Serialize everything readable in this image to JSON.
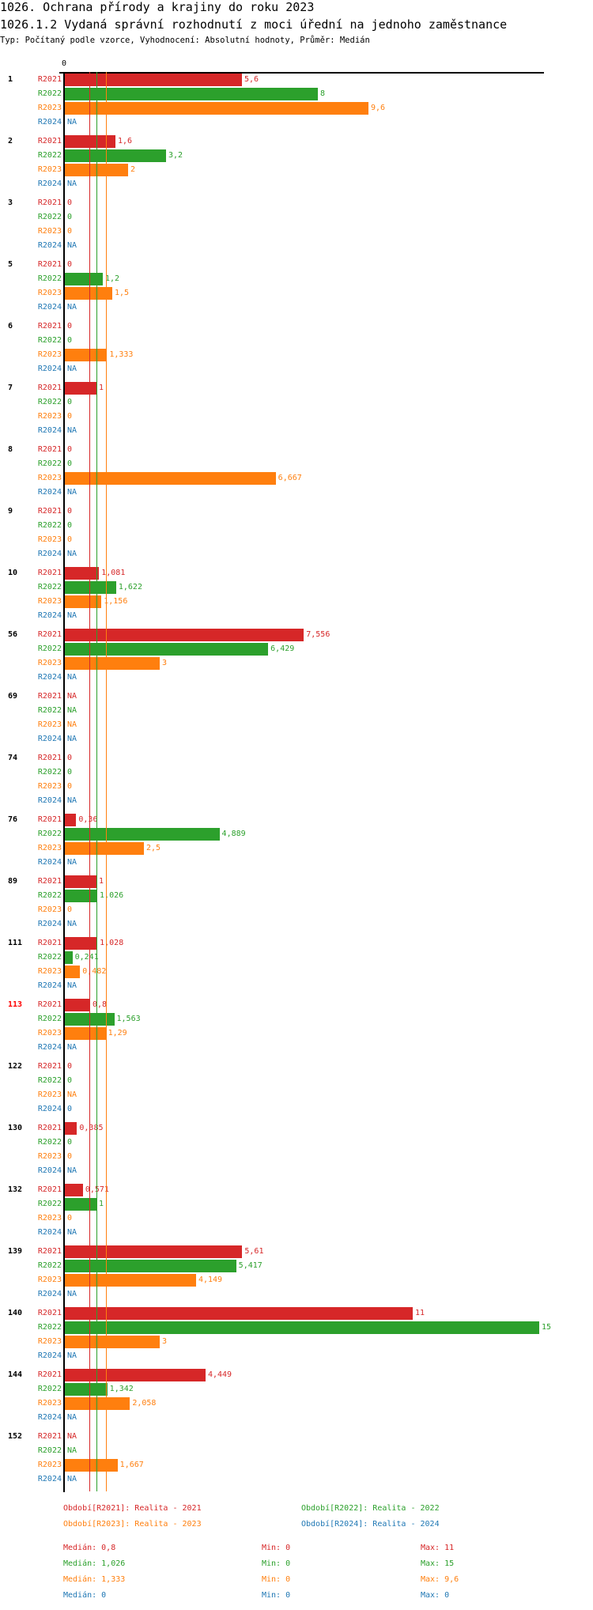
{
  "header": {
    "title": "1026. Ochrana přírody a krajiny do roku 2023",
    "subtitle": "1026.1.2 Vydaná správní rozhodnutí z moci úřední na jednoho zaměstnance",
    "type_line": "Typ: Počítaný podle vzorce, Vyhodnocení: Absolutní hodnoty, Průměr: Medián"
  },
  "chart_data": {
    "type": "bar",
    "orientation": "horizontal",
    "axis_zero_label": "0",
    "xlim": [
      0,
      15
    ],
    "series": [
      {
        "name": "R2021",
        "color": "#d62728"
      },
      {
        "name": "R2022",
        "color": "#2ca02c"
      },
      {
        "name": "R2023",
        "color": "#ff7f0e"
      },
      {
        "name": "R2024",
        "color": "#1f77b4"
      }
    ],
    "groups": [
      {
        "label": "1",
        "values": [
          "5,6",
          "8",
          "9,6",
          "NA"
        ]
      },
      {
        "label": "2",
        "values": [
          "1,6",
          "3,2",
          "2",
          "NA"
        ]
      },
      {
        "label": "3",
        "values": [
          "0",
          "0",
          "0",
          "NA"
        ]
      },
      {
        "label": "5",
        "values": [
          "0",
          "1,2",
          "1,5",
          "NA"
        ]
      },
      {
        "label": "6",
        "values": [
          "0",
          "0",
          "1,333",
          "NA"
        ]
      },
      {
        "label": "7",
        "values": [
          "1",
          "0",
          "0",
          "NA"
        ]
      },
      {
        "label": "8",
        "values": [
          "0",
          "0",
          "6,667",
          "NA"
        ]
      },
      {
        "label": "9",
        "values": [
          "0",
          "0",
          "0",
          "NA"
        ]
      },
      {
        "label": "10",
        "values": [
          "1,081",
          "1,622",
          "1,156",
          "NA"
        ]
      },
      {
        "label": "56",
        "values": [
          "7,556",
          "6,429",
          "3",
          "NA"
        ]
      },
      {
        "label": "69",
        "values": [
          "NA",
          "NA",
          "NA",
          "NA"
        ]
      },
      {
        "label": "74",
        "values": [
          "0",
          "0",
          "0",
          "NA"
        ]
      },
      {
        "label": "76",
        "values": [
          "0,36",
          "4,889",
          "2,5",
          "NA"
        ]
      },
      {
        "label": "89",
        "values": [
          "1",
          "1,026",
          "0",
          "NA"
        ]
      },
      {
        "label": "111",
        "values": [
          "1,028",
          "0,241",
          "0,482",
          "NA"
        ]
      },
      {
        "label": "113",
        "highlight": "#ff0000",
        "values": [
          "0,8",
          "1,563",
          "1,29",
          "NA"
        ]
      },
      {
        "label": "122",
        "values": [
          "0",
          "0",
          "NA",
          "0"
        ]
      },
      {
        "label": "130",
        "values": [
          "0,385",
          "0",
          "0",
          "NA"
        ]
      },
      {
        "label": "132",
        "values": [
          "0,571",
          "1",
          "0",
          "NA"
        ]
      },
      {
        "label": "139",
        "values": [
          "5,61",
          "5,417",
          "4,149",
          "NA"
        ]
      },
      {
        "label": "140",
        "values": [
          "11",
          "15",
          "3",
          "NA"
        ]
      },
      {
        "label": "144",
        "values": [
          "4,449",
          "1,342",
          "2,058",
          "NA"
        ]
      },
      {
        "label": "152",
        "values": [
          "NA",
          "NA",
          "1,667",
          "NA"
        ]
      }
    ],
    "medians": [
      0.8,
      1.026,
      1.333,
      0
    ],
    "legend": [
      "Období[R2021]: Realita - 2021",
      "Období[R2022]: Realita - 2022",
      "Období[R2023]: Realita - 2023",
      "Období[R2024]: Realita - 2024"
    ],
    "stats": [
      {
        "median": "Medián: 0,8",
        "min": "Min: 0",
        "max": "Max: 11"
      },
      {
        "median": "Medián: 1,026",
        "min": "Min: 0",
        "max": "Max: 15"
      },
      {
        "median": "Medián: 1,333",
        "min": "Min: 0",
        "max": "Max: 9,6"
      },
      {
        "median": "Medián: 0",
        "min": "Min: 0",
        "max": "Max: 0"
      }
    ]
  }
}
